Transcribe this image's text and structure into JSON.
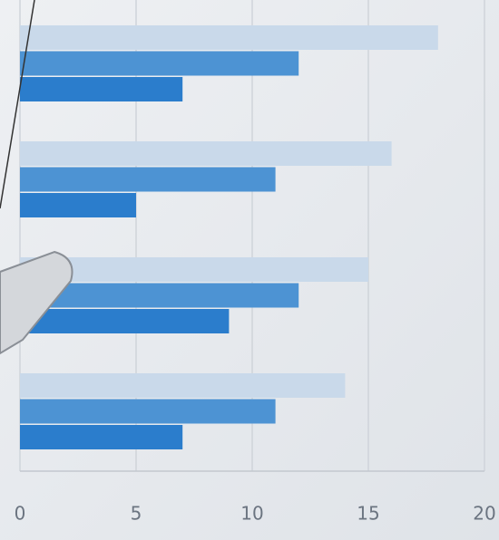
{
  "chart_data": {
    "type": "bar",
    "orientation": "horizontal",
    "categories": [
      null,
      null,
      null,
      null
    ],
    "series": [
      {
        "color": "#c9d9ea",
        "values": [
          18,
          16,
          15,
          14
        ]
      },
      {
        "color": "#4d93d3",
        "values": [
          12,
          11,
          12,
          11
        ]
      },
      {
        "color": "#2b7dcc",
        "values": [
          7,
          5,
          9,
          7
        ]
      }
    ],
    "xlim": [
      0,
      20
    ],
    "xticks": [
      0,
      5,
      10,
      15,
      20
    ],
    "grid": true
  }
}
